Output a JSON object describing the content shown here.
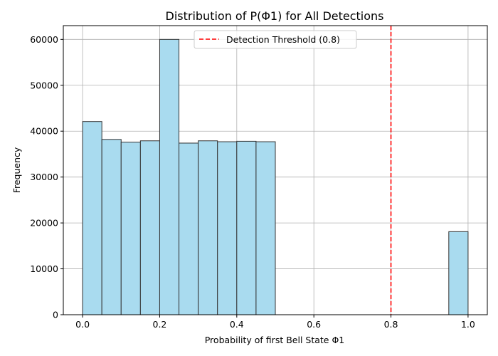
{
  "chart_data": {
    "type": "bar",
    "title": "Distribution of P(Φ1) for All Detections",
    "xlabel": "Probability of first Bell State Φ1",
    "ylabel": "Frequency",
    "xlim": [
      -0.05,
      1.05
    ],
    "ylim": [
      0,
      63000
    ],
    "xticks": [
      0.0,
      0.2,
      0.4,
      0.6,
      0.8,
      1.0
    ],
    "xtick_labels": [
      "0.0",
      "0.2",
      "0.4",
      "0.6",
      "0.8",
      "1.0"
    ],
    "yticks": [
      0,
      10000,
      20000,
      30000,
      40000,
      50000,
      60000
    ],
    "ytick_labels": [
      "0",
      "10000",
      "20000",
      "30000",
      "40000",
      "50000",
      "60000"
    ],
    "grid": true,
    "bar_color": "#a9dbef",
    "bar_edge_color": "#333333",
    "bins": [
      {
        "x0": 0.0,
        "x1": 0.05,
        "value": 42100
      },
      {
        "x0": 0.05,
        "x1": 0.1,
        "value": 38200
      },
      {
        "x0": 0.1,
        "x1": 0.15,
        "value": 37600
      },
      {
        "x0": 0.15,
        "x1": 0.2,
        "value": 37900
      },
      {
        "x0": 0.2,
        "x1": 0.25,
        "value": 60000
      },
      {
        "x0": 0.25,
        "x1": 0.3,
        "value": 37400
      },
      {
        "x0": 0.3,
        "x1": 0.35,
        "value": 37900
      },
      {
        "x0": 0.35,
        "x1": 0.4,
        "value": 37700
      },
      {
        "x0": 0.4,
        "x1": 0.45,
        "value": 37800
      },
      {
        "x0": 0.45,
        "x1": 0.5,
        "value": 37700
      },
      {
        "x0": 0.95,
        "x1": 1.0,
        "value": 18100
      }
    ],
    "threshold": {
      "x": 0.8,
      "label": "Detection Threshold (0.8)",
      "color": "#ff0000",
      "style": "dashed"
    },
    "legend_position": "top-center"
  }
}
